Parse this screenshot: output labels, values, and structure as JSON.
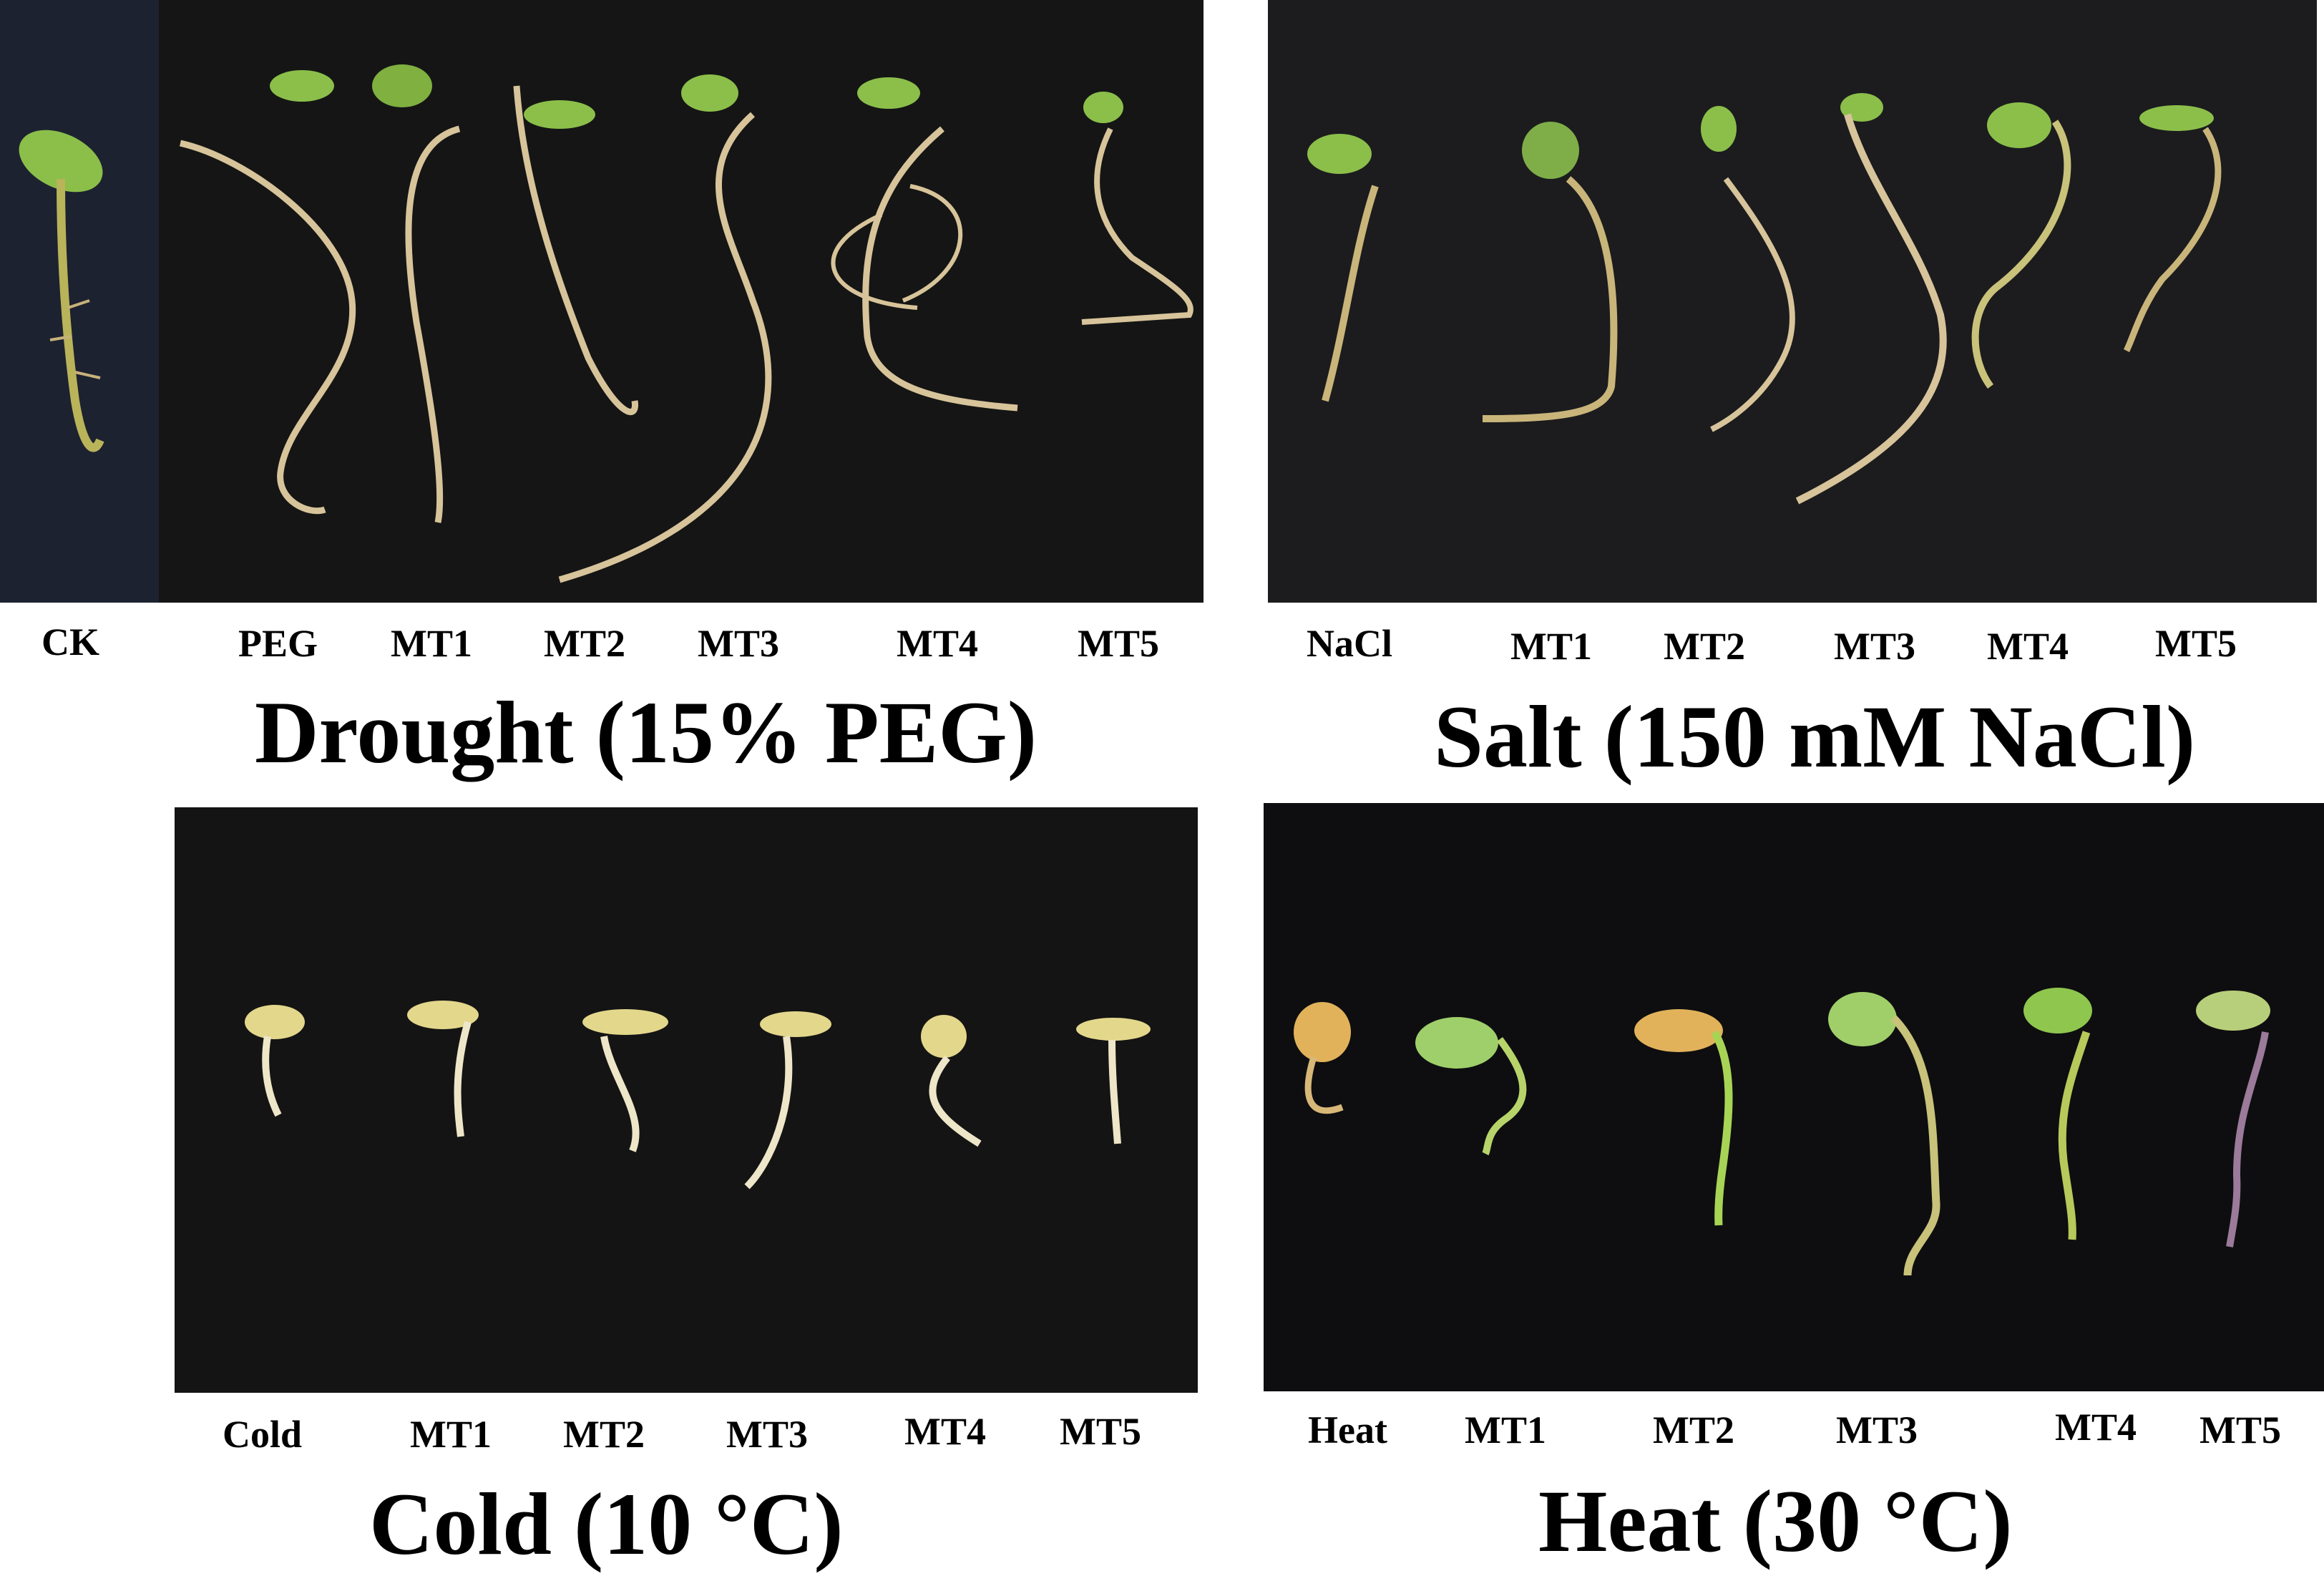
{
  "panels": {
    "drought": {
      "title": "Drought (15% PEG)",
      "labels": [
        "CK",
        "PEG",
        "MT1",
        "MT2",
        "MT3",
        "MT4",
        "MT5"
      ]
    },
    "salt": {
      "title": "Salt (150 mM NaCl)",
      "labels": [
        "NaCl",
        "MT1",
        "MT2",
        "MT3",
        "MT4",
        "MT5"
      ]
    },
    "cold": {
      "title": "Cold (10 °C)",
      "labels": [
        "Cold",
        "MT1",
        "MT2",
        "MT3",
        "MT4",
        "MT5"
      ]
    },
    "heat": {
      "title": "Heat (30 °C)",
      "labels": [
        "Heat",
        "MT1",
        "MT2",
        "MT3",
        "MT4",
        "MT5"
      ]
    }
  },
  "colors": {
    "background": "#ffffff",
    "photo_backdrop": "#141416",
    "root": "#d8c49a",
    "stem": "#b9b35a",
    "cotyledon": "#8bbf4a",
    "seed_cold": "#e3d78c",
    "seed_heat": "#e2b25a"
  }
}
